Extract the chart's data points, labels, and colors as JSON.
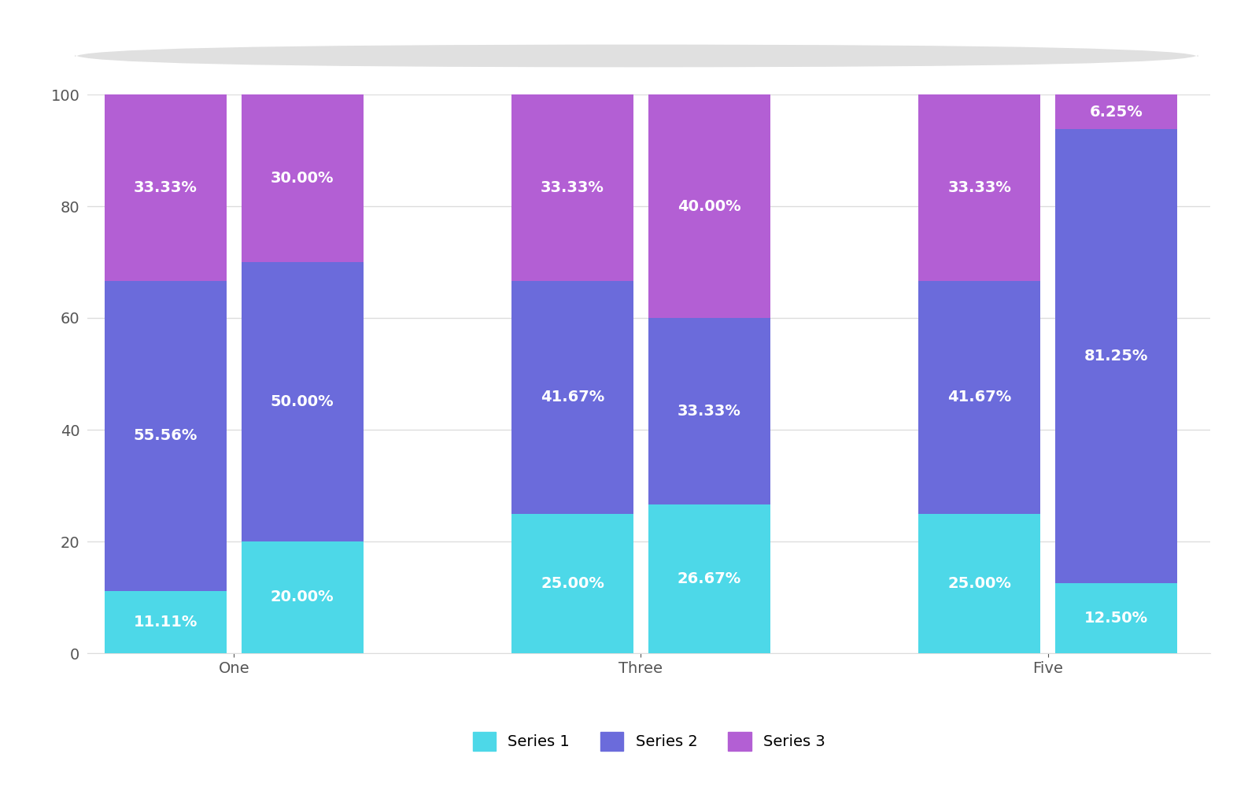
{
  "categories": [
    "One",
    "Three",
    "Five"
  ],
  "series1_values": [
    11.11,
    20.0,
    25.0,
    26.67,
    25.0,
    12.5
  ],
  "series2_values": [
    55.56,
    50.0,
    41.67,
    33.33,
    41.67,
    81.25
  ],
  "series3_values": [
    33.33,
    30.0,
    33.33,
    40.0,
    33.33,
    6.25
  ],
  "series1_color": "#4DD8E8",
  "series2_color": "#6B6BDB",
  "series3_color": "#B35FD4",
  "bar_width": 0.75,
  "background_color": "#FFFFFF",
  "grid_color": "#DDDDDD",
  "text_color": "#FFFFFF",
  "legend_labels": [
    "Series 1",
    "Series 2",
    "Series 3"
  ],
  "ylim": [
    0,
    100
  ],
  "yticks": [
    0,
    20,
    40,
    60,
    80,
    100
  ],
  "font_size_labels": 14,
  "font_size_ticks": 14,
  "font_size_legend": 14,
  "group_positions": [
    1.0,
    3.5,
    6.0
  ],
  "bar_offsets": [
    -0.42,
    0.42
  ]
}
